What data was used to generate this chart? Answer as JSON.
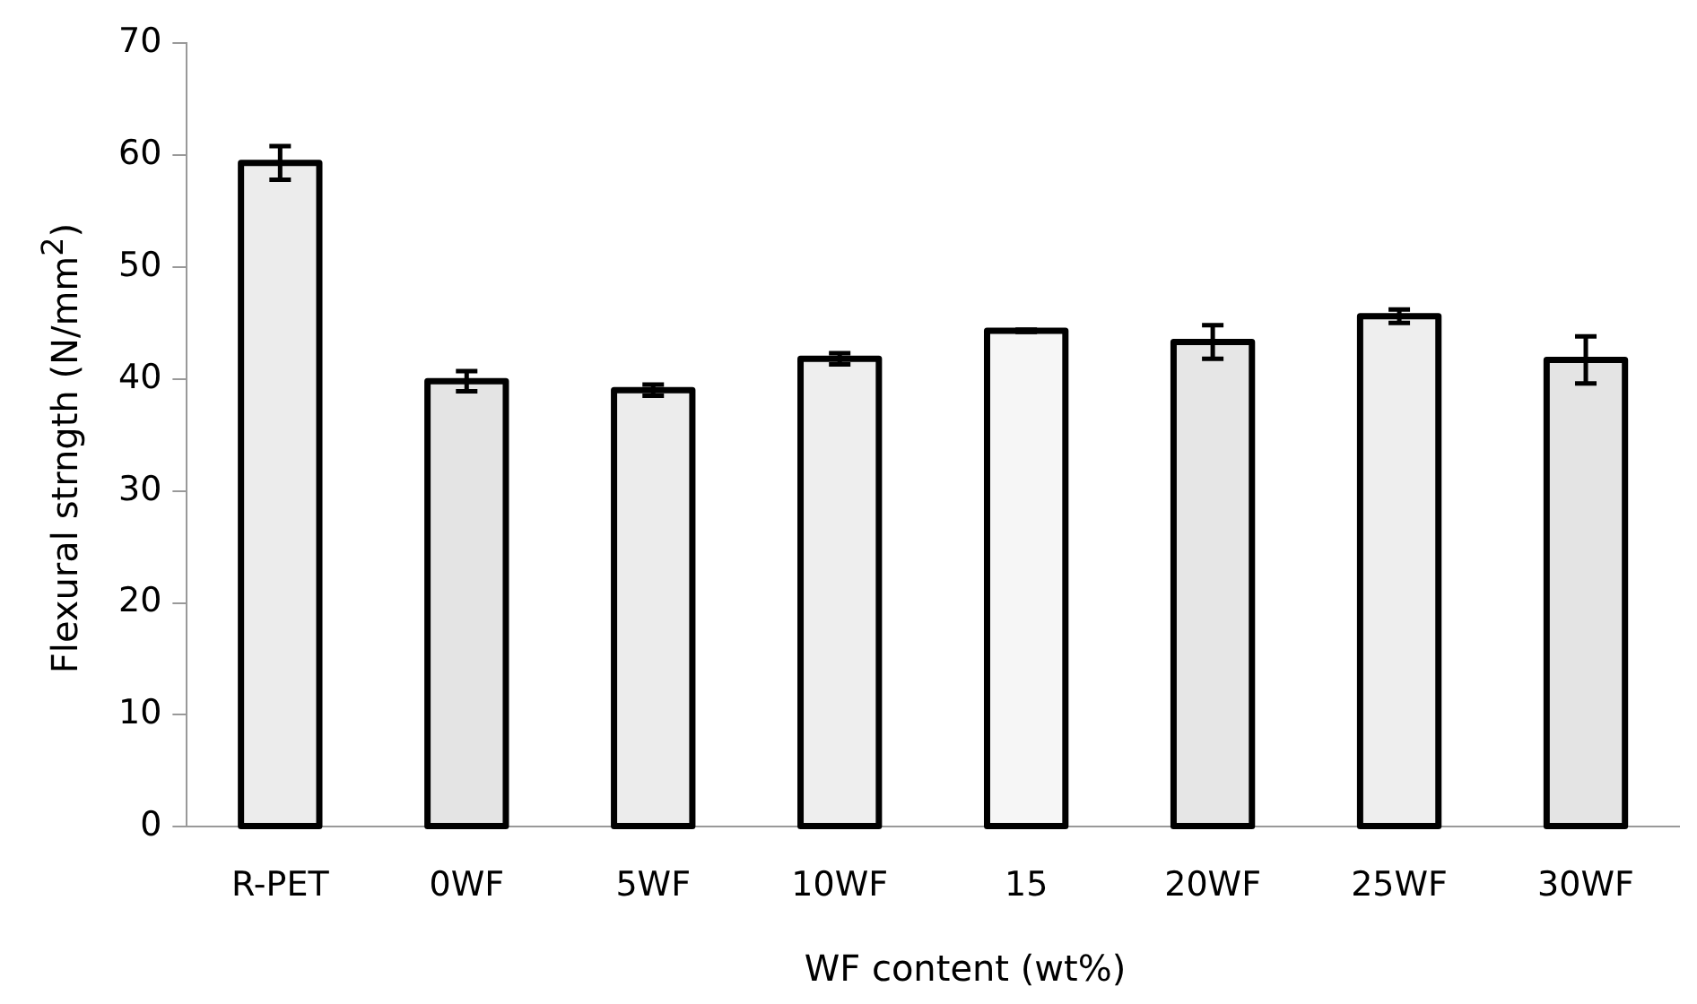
{
  "chart_data": {
    "type": "bar",
    "xlabel": "WF content (wt%)",
    "ylabel": "Flexural strngth (N/mm$^{2}$)",
    "categories": [
      "R-PET",
      "0WF",
      "5WF",
      "10WF",
      "15",
      "20WF",
      "25WF",
      "30WF"
    ],
    "values": [
      59.3,
      39.8,
      39.0,
      41.8,
      44.3,
      43.3,
      45.6,
      41.7
    ],
    "errors": [
      1.5,
      0.9,
      0.5,
      0.5,
      0.1,
      1.5,
      0.6,
      2.1
    ],
    "colors": [
      "#ececec",
      "#e4e4e4",
      "#ececec",
      "#eeeeee",
      "#f6f6f6",
      "#e6e6e6",
      "#eeeeee",
      "#e4e4e4"
    ],
    "ylim": [
      0,
      70
    ],
    "yticks": [
      0,
      10,
      20,
      30,
      40,
      50,
      60,
      70
    ],
    "grid": false,
    "legend": false
  }
}
